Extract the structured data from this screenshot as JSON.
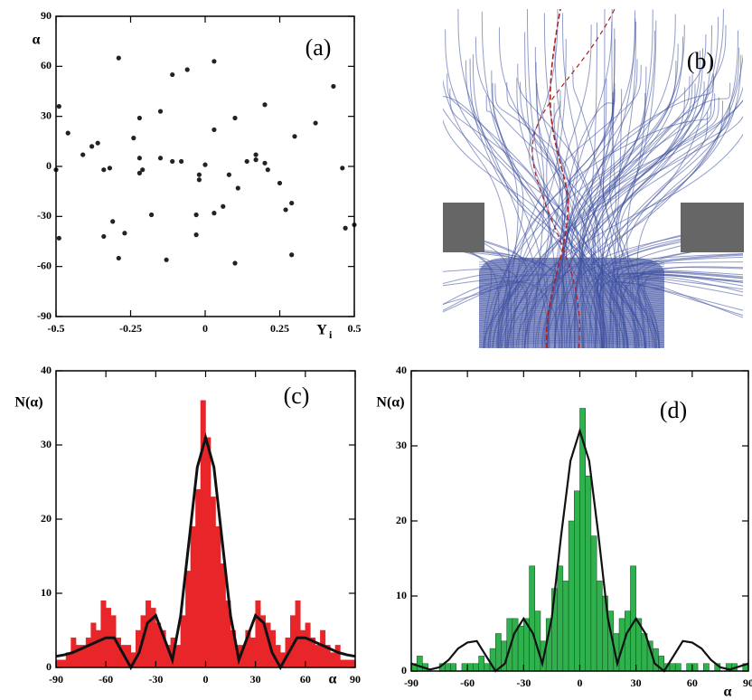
{
  "chart_data": [
    {
      "type": "scatter",
      "panel_label": "(a)",
      "ylabel": "α",
      "xlabel": "Y",
      "xlabel_subscript": "i",
      "color": "#222222",
      "xlim": [
        -0.5,
        0.5
      ],
      "xticks": [
        -0.5,
        -0.25,
        0,
        0.25,
        0.5
      ],
      "ylim": [
        -90,
        90
      ],
      "yticks": [
        -90,
        -60,
        -30,
        0,
        30,
        60,
        90
      ],
      "x": [
        -0.49,
        -0.46,
        -0.5,
        -0.49,
        -0.41,
        -0.38,
        -0.36,
        -0.29,
        -0.34,
        -0.32,
        -0.31,
        -0.34,
        -0.27,
        -0.29,
        -0.24,
        -0.22,
        -0.22,
        -0.21,
        -0.22,
        -0.18,
        -0.15,
        -0.15,
        -0.13,
        -0.11,
        -0.11,
        -0.08,
        -0.06,
        -0.02,
        -0.02,
        0,
        -0.03,
        -0.03,
        0.03,
        0.03,
        0.03,
        0.06,
        0.1,
        0.08,
        0.1,
        0.11,
        0.14,
        0.17,
        0.17,
        0.2,
        0.2,
        0.21,
        0.25,
        0.27,
        0.29,
        0.3,
        0.29,
        0.37,
        0.43,
        0.46,
        0.47,
        0.5
      ],
      "values": [
        36,
        20,
        -2,
        -43,
        7,
        12,
        14,
        65,
        -2,
        -1,
        -33,
        -42,
        -40,
        -55,
        17,
        29,
        5,
        -2,
        -4,
        -29,
        33,
        5,
        -56,
        55,
        3,
        3,
        58,
        -5,
        -8,
        1,
        -29,
        -41,
        63,
        22,
        -28,
        -24,
        29,
        -5,
        -58,
        -13,
        3,
        7,
        4,
        37,
        2,
        -2,
        -10,
        -26,
        -22,
        18,
        -53,
        26,
        48,
        -1,
        -37,
        -35
      ]
    },
    {
      "type": "histogram",
      "panel_label": "(c)",
      "ylabel": "N(α)",
      "xlabel": "α",
      "color": "#e8262a",
      "xlim": [
        -90,
        90
      ],
      "xticks": [
        -90,
        -60,
        -30,
        0,
        30,
        60,
        90
      ],
      "ylim": [
        0,
        40
      ],
      "yticks": [
        0,
        10,
        20,
        30,
        40
      ],
      "bins": [
        -90,
        -87,
        -84,
        -81,
        -78,
        -75,
        -72,
        -69,
        -66,
        -63,
        -60,
        -57,
        -54,
        -51,
        -48,
        -45,
        -42,
        -39,
        -36,
        -33,
        -30,
        -27,
        -24,
        -21,
        -18,
        -15,
        -12,
        -9,
        -6,
        -3,
        0,
        3,
        6,
        9,
        12,
        15,
        18,
        21,
        24,
        27,
        30,
        33,
        36,
        39,
        42,
        45,
        48,
        51,
        54,
        57,
        60,
        63,
        66,
        69,
        72,
        75,
        78,
        81,
        84,
        87,
        90
      ],
      "values": [
        1,
        1,
        2,
        4,
        3,
        3,
        4,
        6,
        5,
        9,
        8,
        7,
        4,
        3,
        3,
        2,
        5,
        7,
        9,
        8,
        6,
        5,
        3,
        4,
        3,
        7,
        13,
        19,
        24,
        36,
        31,
        23,
        19,
        14,
        9,
        5,
        3,
        3,
        5,
        4,
        9,
        7,
        6,
        5,
        3,
        2,
        4,
        7,
        9,
        5,
        6,
        4,
        3,
        5,
        3,
        2,
        3,
        1,
        1,
        1
      ],
      "curve": {
        "color": "#111111",
        "x": [
          -90,
          -85,
          -80,
          -75,
          -70,
          -65,
          -60,
          -55,
          -50,
          -45,
          -40,
          -35,
          -30,
          -25,
          -20,
          -15,
          -10,
          -5,
          0,
          5,
          10,
          15,
          20,
          25,
          30,
          35,
          40,
          45,
          50,
          55,
          60,
          65,
          70,
          75,
          80,
          85,
          90
        ],
        "values": [
          1.5,
          1.7,
          2,
          2.5,
          3,
          3.5,
          4,
          4,
          2,
          0,
          2,
          6,
          7,
          4,
          1,
          7,
          17,
          27,
          31,
          27,
          17,
          7,
          1,
          4,
          7,
          6,
          2,
          0,
          2,
          4,
          4,
          3.5,
          3,
          2.5,
          2,
          1.7,
          1.5
        ]
      }
    },
    {
      "type": "histogram",
      "panel_label": "(d)",
      "ylabel": "N(α)",
      "xlabel": "α",
      "color": "#2fb14d",
      "xlim": [
        -90,
        90
      ],
      "xticks": [
        -90,
        -60,
        -30,
        0,
        30,
        60,
        90
      ],
      "ylim": [
        0,
        40
      ],
      "yticks": [
        0,
        10,
        20,
        30,
        40
      ],
      "bins": [
        -90,
        -87,
        -84,
        -81,
        -78,
        -75,
        -72,
        -69,
        -66,
        -63,
        -60,
        -57,
        -54,
        -51,
        -48,
        -45,
        -42,
        -39,
        -36,
        -33,
        -30,
        -27,
        -24,
        -21,
        -18,
        -15,
        -12,
        -9,
        -6,
        -3,
        0,
        3,
        6,
        9,
        12,
        15,
        18,
        21,
        24,
        27,
        30,
        33,
        36,
        39,
        42,
        45,
        48,
        51,
        54,
        57,
        60,
        63,
        66,
        69,
        72,
        75,
        78,
        81,
        84,
        87,
        90
      ],
      "values": [
        1,
        2,
        1,
        0,
        0,
        1,
        1,
        1,
        0,
        1,
        1,
        1,
        2,
        1,
        3,
        5,
        4,
        7,
        7,
        6,
        7,
        14,
        8,
        4,
        7,
        11,
        14,
        12,
        20,
        24,
        35,
        26,
        18,
        12,
        10,
        8,
        5,
        7,
        8,
        14,
        7,
        5,
        4,
        3,
        2,
        1,
        1,
        1,
        0,
        1,
        1,
        0,
        1,
        0,
        1,
        0,
        1,
        1,
        0,
        1
      ],
      "curve": {
        "color": "#111111",
        "x": [
          -90,
          -85,
          -80,
          -75,
          -70,
          -65,
          -60,
          -55,
          -50,
          -45,
          -40,
          -35,
          -30,
          -25,
          -20,
          -15,
          -10,
          -5,
          0,
          5,
          10,
          15,
          20,
          25,
          30,
          35,
          40,
          45,
          50,
          55,
          60,
          65,
          70,
          75,
          80,
          85,
          90
        ],
        "values": [
          1,
          0.6,
          0.2,
          0.5,
          1.5,
          3,
          3.8,
          4,
          2,
          0,
          1,
          5,
          7,
          5,
          1,
          7,
          18,
          28,
          32,
          28,
          18,
          7,
          1,
          5,
          7,
          5,
          1,
          0,
          2,
          4,
          3.8,
          3,
          1.5,
          0.5,
          0.2,
          0.6,
          1
        ]
      }
    }
  ],
  "image_panel": {
    "label": "(b)"
  }
}
